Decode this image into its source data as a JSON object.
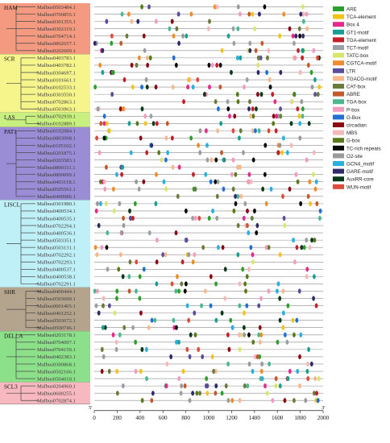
{
  "groups": [
    {
      "name": "HAM",
      "color": "#f39a80",
      "genes": [
        "Malbus0503484.1",
        "Malbus0700855.1",
        "Malbus0301355.1",
        "Malbus0302319.1",
        "Malbus0704714.1",
        "Malbus0802657.1",
        "Malbus0202609.1"
      ]
    },
    {
      "name": "SCR",
      "color": "#f5f58c",
      "genes": [
        "Malbus0403783.1",
        "Malbus0403782.1",
        "Malbus0304697.1",
        "Malbus0101661.1",
        "Malbus0102533.1",
        "Malbus0303550.1",
        "Malbus0702863.1",
        "Malbus0503963.1"
      ]
    },
    {
      "name": "LAS",
      "color": "#c8f07e",
      "genes": [
        "Malbus0702939.1",
        "Malbus0102889.1"
      ]
    },
    {
      "name": "PAT1",
      "color": "#9b8cd6",
      "genes": [
        "Malbus0102084.1",
        "Malbus0803098.1",
        "Malbus0105102.1",
        "Malbus0201875.1",
        "Malbus0203583.1",
        "Malbus0800311.1",
        "Malbus0800099.1",
        "Malbus0403118.1",
        "Malbus0505561.1",
        "Malbus0400986.1"
      ]
    },
    {
      "name": "LISCL",
      "color": "#bff0f7",
      "genes": [
        "Malbus0301980.1",
        "Malbus0400534.1",
        "Malbus0400535.1",
        "Malbus0702294.1",
        "Malbus0400536.1",
        "Malbus0503351.1",
        "Malbus0503131.1",
        "Malbus0702292.1",
        "Malbus0702293.1",
        "Malbus0400537.1",
        "Malbus0400538.1",
        "Malbus0702291.1"
      ]
    },
    {
      "name": "SHR",
      "color": "#b5a48d",
      "genes": [
        "Malbus0400444.1",
        "Malbus0503690.1",
        "Malbus0601405.1",
        "Malbus0401252.1",
        "Malbus0503672.1",
        "Malbus0500746.1"
      ]
    },
    {
      "name": "DELLA",
      "color": "#8de08a",
      "genes": [
        "Malbus0203178.1",
        "Malbus0704097.1",
        "Malbus0704150.1",
        "Malbus0402383.1",
        "Malbus0300868.1",
        "Malbus0502166.1",
        "Malbus0504010.1"
      ]
    },
    {
      "name": "SCL3",
      "color": "#f7b8bf",
      "genes": [
        "Malbus0204960.1",
        "Malbus0600255.1",
        "Malbus0702874.1"
      ]
    }
  ],
  "legend": [
    {
      "name": "ARE",
      "color": "#2ca02c"
    },
    {
      "name": "TCA-element",
      "color": "#f2c419"
    },
    {
      "name": "Box 4",
      "color": "#e7298a"
    },
    {
      "name": "GT1-motif",
      "color": "#17a092"
    },
    {
      "name": "TGA-element",
      "color": "#c71f29"
    },
    {
      "name": "TCT-motif",
      "color": "#9aa1a6"
    },
    {
      "name": "TATC-box",
      "color": "#d8e66a"
    },
    {
      "name": "CGTCA-motif",
      "color": "#f08c2a"
    },
    {
      "name": "LTR",
      "color": "#5a4e9c"
    },
    {
      "name": "TGACG-motif",
      "color": "#f6b98e"
    },
    {
      "name": "CAT-box",
      "color": "#6b7b3a"
    },
    {
      "name": "ABRE",
      "color": "#c45a2c"
    },
    {
      "name": "TGA-box",
      "color": "#4cb890"
    },
    {
      "name": "P-box",
      "color": "#f29ac0"
    },
    {
      "name": "G-Box",
      "color": "#1f6fd6"
    },
    {
      "name": "circadian",
      "color": "#8b0a14"
    },
    {
      "name": "MBS",
      "color": "#f5b8b8"
    },
    {
      "name": "G-box",
      "color": "#5a7a1a"
    },
    {
      "name": "TC-rich repeats",
      "color": "#0a0a0a"
    },
    {
      "name": "O2-site",
      "color": "#9a9a9a"
    },
    {
      "name": "GCN4_motif",
      "color": "#2ab0e0"
    },
    {
      "name": "GARE-motif",
      "color": "#2f2a6a"
    },
    {
      "name": "AuxRR-core",
      "color": "#0a3a1a"
    },
    {
      "name": "WUN-motif",
      "color": "#e04a3a"
    }
  ],
  "axis": {
    "ticks": [
      "0",
      "200",
      "400",
      "600",
      "800",
      "1000",
      "1200",
      "1400",
      "1600",
      "1800",
      "2000"
    ],
    "start_label": "5'",
    "end_label": "3'"
  }
}
